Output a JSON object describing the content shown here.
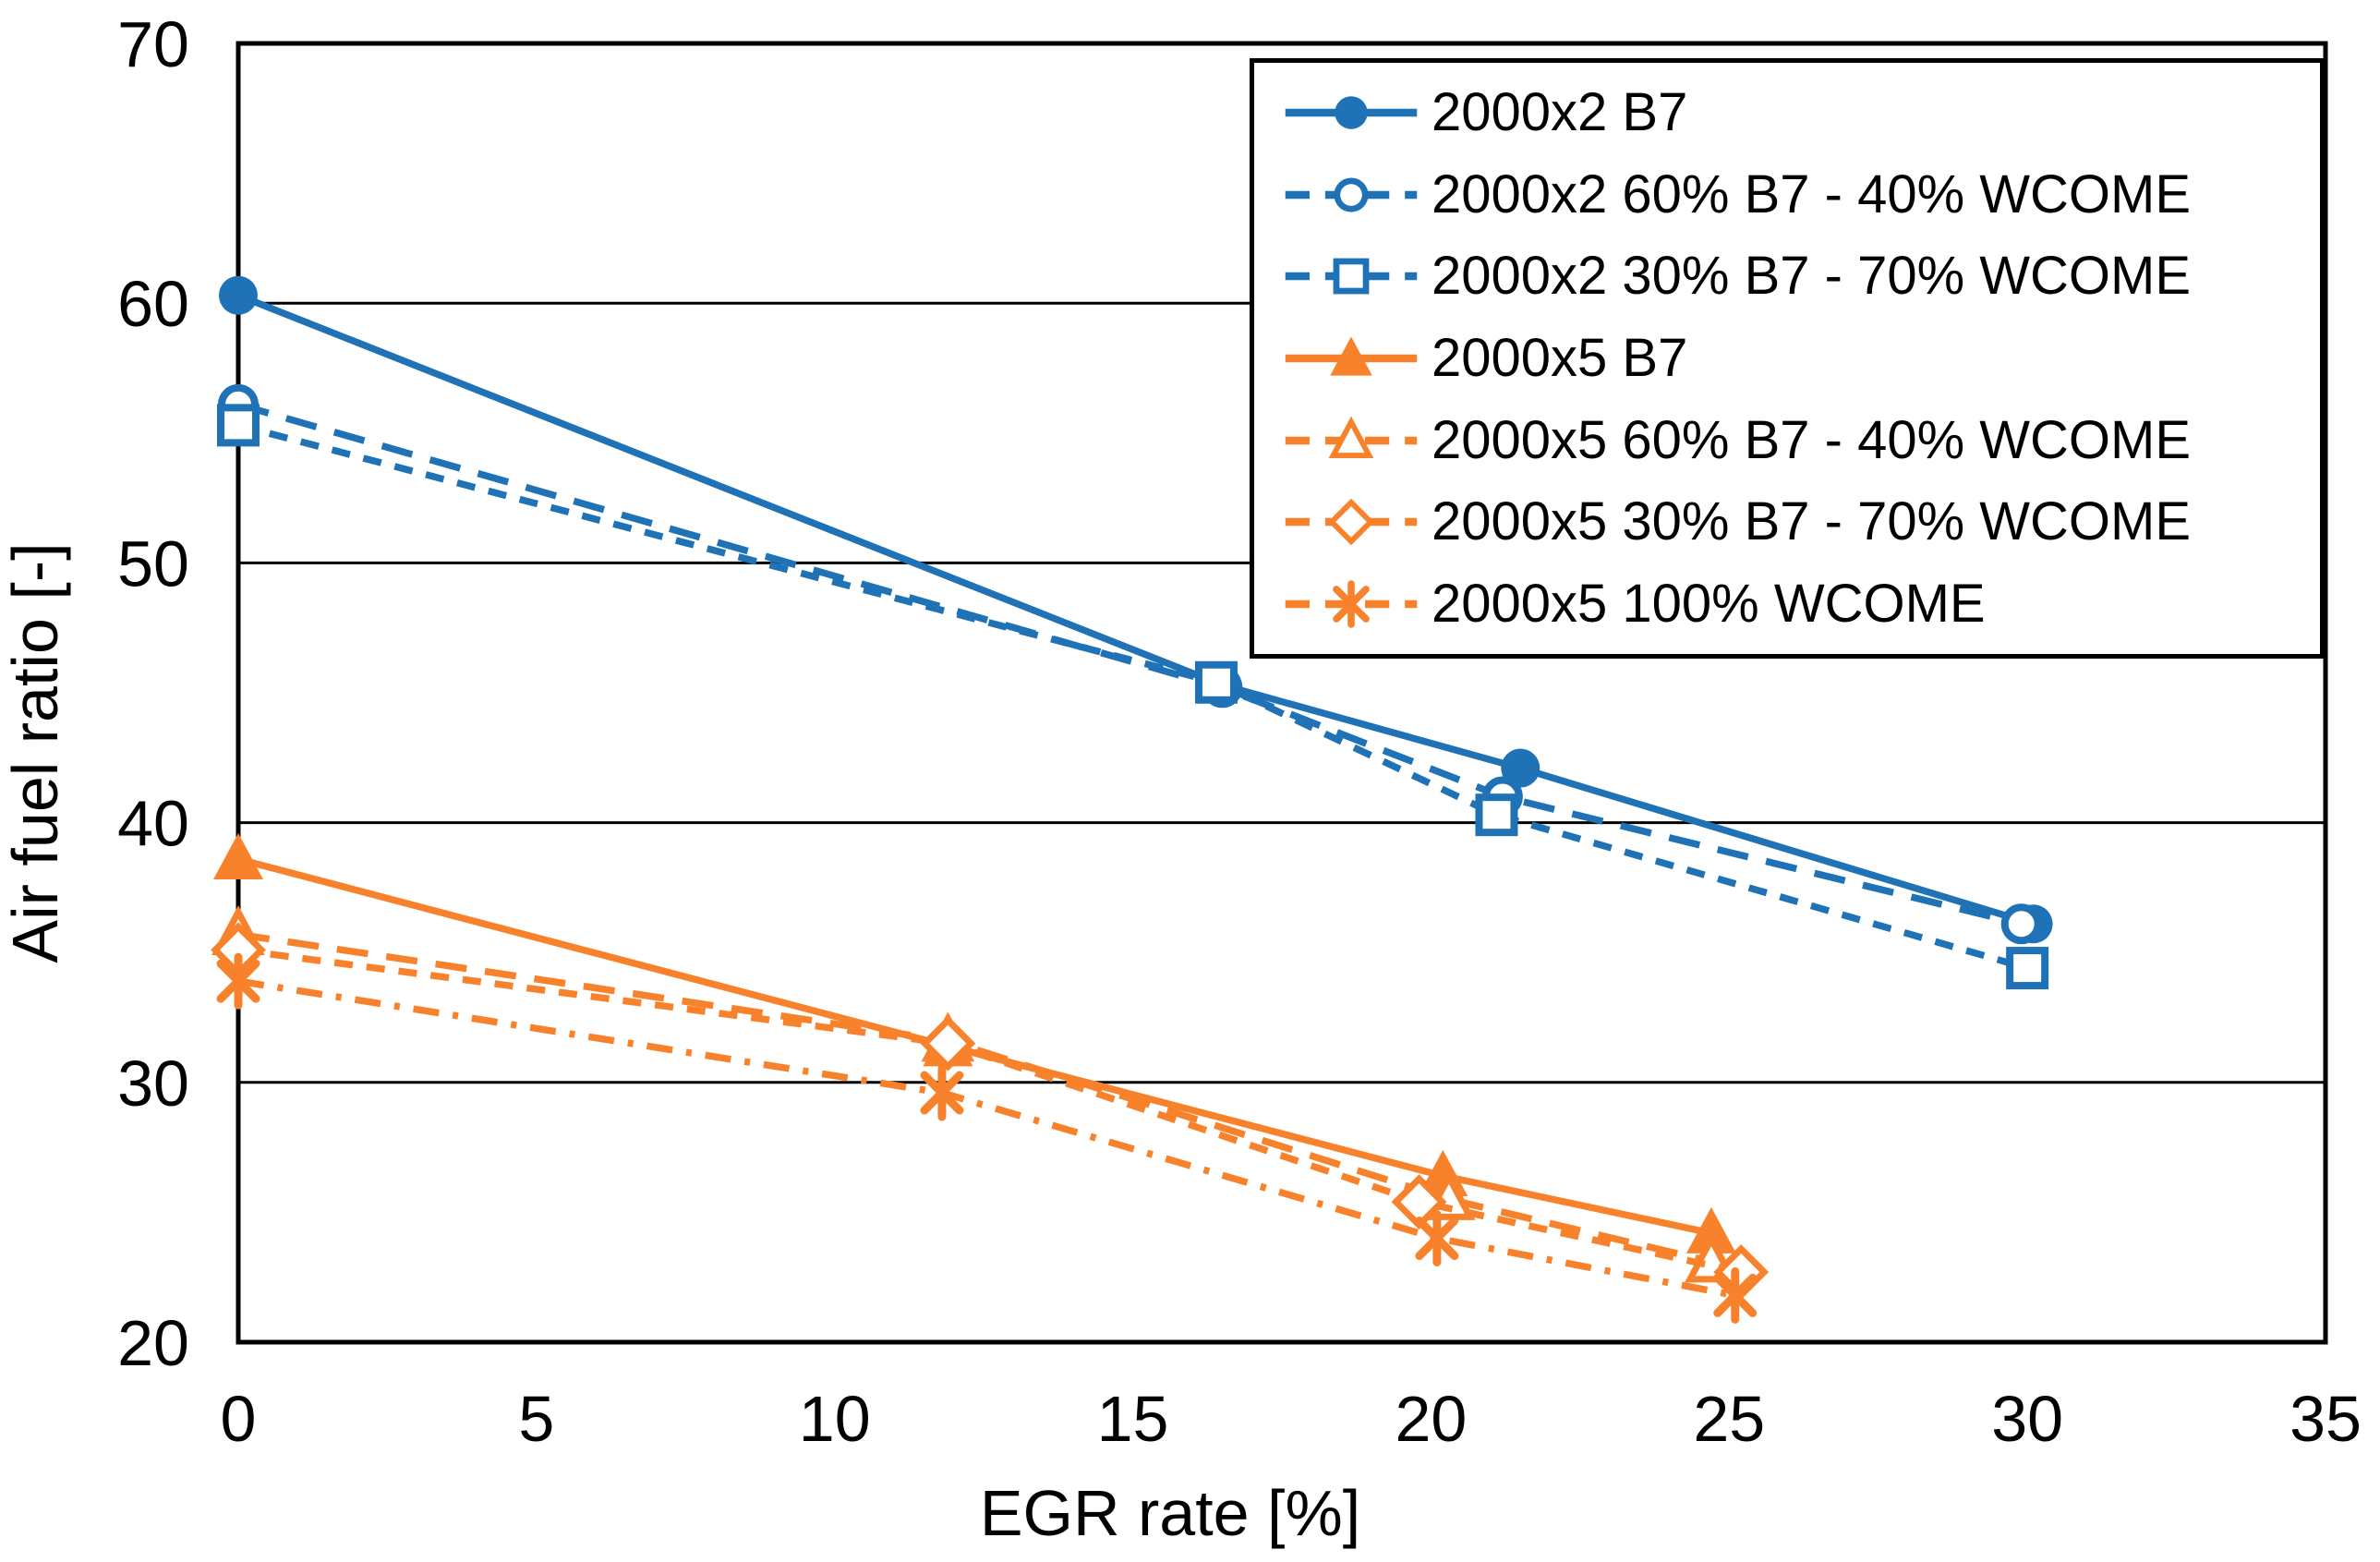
{
  "figure": {
    "background": "#FFFFFF",
    "border_color": "#000000"
  },
  "chart_data": {
    "type": "line",
    "title": "",
    "xlabel": "EGR rate [%]",
    "ylabel": "Air fuel ratio [-]",
    "xlim": [
      0,
      35
    ],
    "ylim": [
      20,
      70
    ],
    "x_ticks": [
      0,
      5,
      10,
      15,
      20,
      25,
      30,
      35
    ],
    "y_ticks": [
      20,
      30,
      40,
      50,
      60,
      70
    ],
    "grid": "horizontal-only",
    "legend_position": "top-right-inside",
    "series": [
      {
        "name": "2000x2 B7",
        "color": "#1F72B5",
        "marker": "circle-filled",
        "line": "solid",
        "points": [
          [
            0,
            60.3
          ],
          [
            16.5,
            45.3
          ],
          [
            21.5,
            42.1
          ],
          [
            30.1,
            36.1
          ]
        ]
      },
      {
        "name": "2000x2 60% B7 - 40% WCOME",
        "color": "#1F72B5",
        "marker": "circle-open",
        "line": "dash-long",
        "points": [
          [
            0,
            56.1
          ],
          [
            16.5,
            45.2
          ],
          [
            21.2,
            41.0
          ],
          [
            29.9,
            36.1
          ]
        ]
      },
      {
        "name": "2000x2 30% B7 - 70% WCOME",
        "color": "#1F72B5",
        "marker": "square-open",
        "line": "dash",
        "points": [
          [
            0,
            55.3
          ],
          [
            16.4,
            45.4
          ],
          [
            21.1,
            40.3
          ],
          [
            30.0,
            34.4
          ]
        ]
      },
      {
        "name": "2000x5 B7",
        "color": "#F8822B",
        "marker": "triangle-filled",
        "line": "solid",
        "points": [
          [
            0,
            38.6
          ],
          [
            11.9,
            31.4
          ],
          [
            20.2,
            26.4
          ],
          [
            24.7,
            24.2
          ]
        ]
      },
      {
        "name": "2000x5 60% B7 - 40% WCOME",
        "color": "#F8822B",
        "marker": "triangle-open",
        "line": "dash-long",
        "points": [
          [
            0,
            35.7
          ],
          [
            11.9,
            31.6
          ],
          [
            20.3,
            25.5
          ],
          [
            24.7,
            23.1
          ]
        ]
      },
      {
        "name": "2000x5 30% B7 - 70% WCOME",
        "color": "#F8822B",
        "marker": "diamond-open",
        "line": "dash",
        "points": [
          [
            0,
            35.1
          ],
          [
            11.9,
            31.5
          ],
          [
            19.8,
            25.4
          ],
          [
            25.2,
            22.7
          ]
        ]
      },
      {
        "name": "2000x5 100% WCOME",
        "color": "#F8822B",
        "marker": "asterisk",
        "line": "dashdot",
        "points": [
          [
            0,
            33.9
          ],
          [
            11.8,
            29.6
          ],
          [
            20.1,
            24.0
          ],
          [
            25.1,
            21.8
          ]
        ]
      }
    ]
  }
}
